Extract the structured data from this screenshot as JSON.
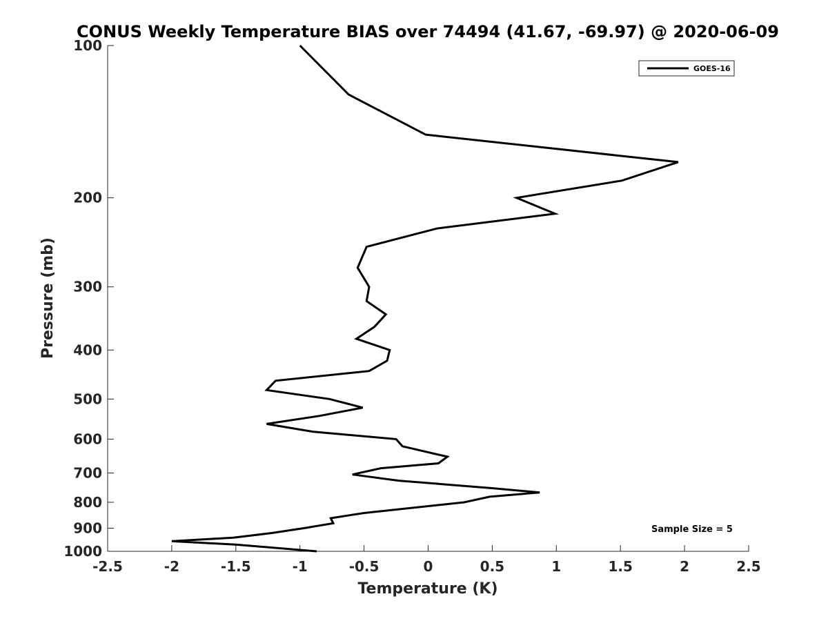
{
  "chart_data": {
    "type": "line",
    "title": "CONUS Weekly Temperature BIAS over 74494 (41.67, -69.97) @ 2020-06-09",
    "xlabel": "Temperature (K)",
    "ylabel": "Pressure (mb)",
    "xlim": [
      -2.5,
      2.5
    ],
    "ylim": [
      100,
      1000
    ],
    "y_scale": "log",
    "y_reversed": true,
    "x_ticks": [
      "-2.5",
      "-2",
      "-1.5",
      "-1",
      "-0.5",
      "0",
      "0.5",
      "1",
      "1.5",
      "2",
      "2.5"
    ],
    "y_ticks": [
      "100",
      "200",
      "300",
      "400",
      "500",
      "600",
      "700",
      "800",
      "900",
      "1000"
    ],
    "grid": false,
    "legend_position": "top-right",
    "annotation": "Sample Size = 5",
    "series": [
      {
        "name": "GOES-16",
        "color": "#000000",
        "points": [
          {
            "x": -1.0,
            "y": 100
          },
          {
            "x": -0.62,
            "y": 125
          },
          {
            "x": -0.02,
            "y": 150
          },
          {
            "x": 1.95,
            "y": 170
          },
          {
            "x": 1.51,
            "y": 185
          },
          {
            "x": 0.69,
            "y": 200
          },
          {
            "x": 0.99,
            "y": 215
          },
          {
            "x": 0.07,
            "y": 230
          },
          {
            "x": -0.48,
            "y": 250
          },
          {
            "x": -0.55,
            "y": 275
          },
          {
            "x": -0.46,
            "y": 300
          },
          {
            "x": -0.48,
            "y": 320
          },
          {
            "x": -0.33,
            "y": 340
          },
          {
            "x": -0.42,
            "y": 360
          },
          {
            "x": -0.56,
            "y": 380
          },
          {
            "x": -0.3,
            "y": 400
          },
          {
            "x": -0.32,
            "y": 420
          },
          {
            "x": -0.46,
            "y": 440
          },
          {
            "x": -1.19,
            "y": 460
          },
          {
            "x": -1.26,
            "y": 480
          },
          {
            "x": -0.77,
            "y": 500
          },
          {
            "x": -0.51,
            "y": 520
          },
          {
            "x": -0.85,
            "y": 540
          },
          {
            "x": -1.26,
            "y": 560
          },
          {
            "x": -0.9,
            "y": 580
          },
          {
            "x": -0.25,
            "y": 600
          },
          {
            "x": -0.2,
            "y": 620
          },
          {
            "x": 0.15,
            "y": 650
          },
          {
            "x": 0.08,
            "y": 670
          },
          {
            "x": -0.37,
            "y": 685
          },
          {
            "x": -0.59,
            "y": 705
          },
          {
            "x": -0.23,
            "y": 725
          },
          {
            "x": 0.49,
            "y": 750
          },
          {
            "x": 0.87,
            "y": 765
          },
          {
            "x": 0.48,
            "y": 780
          },
          {
            "x": 0.28,
            "y": 800
          },
          {
            "x": -0.5,
            "y": 840
          },
          {
            "x": -0.76,
            "y": 860
          },
          {
            "x": -0.74,
            "y": 880
          },
          {
            "x": -0.97,
            "y": 900
          },
          {
            "x": -1.22,
            "y": 920
          },
          {
            "x": -1.52,
            "y": 940
          },
          {
            "x": -2.0,
            "y": 955
          },
          {
            "x": -1.5,
            "y": 970
          },
          {
            "x": -0.87,
            "y": 1000
          }
        ]
      }
    ]
  }
}
